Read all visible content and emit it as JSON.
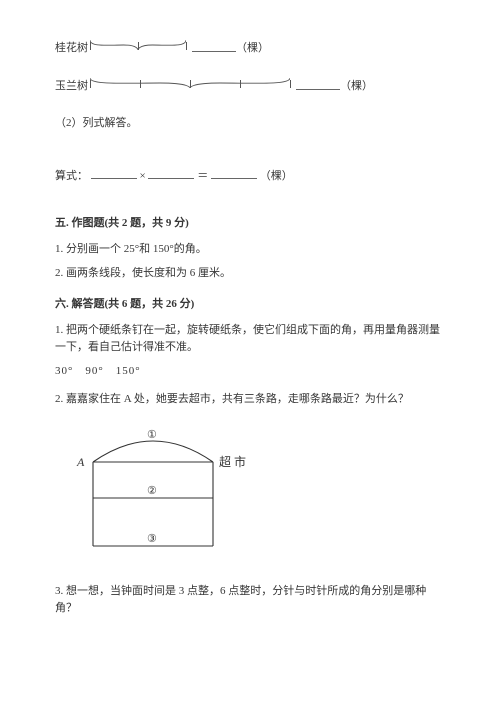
{
  "tree1": {
    "label": "桂花树",
    "unit": "（棵）",
    "blank_a_width": 48,
    "blank_b_width": 44,
    "brace_width": 96,
    "ticks": [
      0,
      48,
      96
    ]
  },
  "tree2": {
    "label": "玉兰树",
    "unit": "（棵）",
    "blank_width": 44,
    "brace_width": 200,
    "ticks": [
      0,
      50,
      100,
      150,
      200
    ]
  },
  "sub2": {
    "label": "（2）列式解答。"
  },
  "formula": {
    "prefix": "算式：",
    "op": "×",
    "eq": "＝",
    "unit": "（棵）",
    "blank_w": 46
  },
  "sec5": {
    "title": "五. 作图题(共 2 题，共 9 分)",
    "q1": "1. 分别画一个 25°和 150°的角。",
    "q2": "2. 画两条线段，使长度和为 6 厘米。"
  },
  "sec6": {
    "title": "六. 解答题(共 6 题，共 26 分)",
    "q1": "1. 把两个硬纸条钉在一起，旋转硬纸条，使它们组成下面的角，再用量角器测量一下，看自己估计得准不准。",
    "angles": "30°　90°　150°",
    "q2": "2. 嘉嘉家住在 A 处，她要去超市，共有三条路，走哪条路最近？为什么？",
    "q3": "3. 想一想，当钟面时间是 3 点整，6 点整时，分针与时针所成的角分别是哪种角？"
  },
  "diagram": {
    "A": "A",
    "market": "超 市",
    "n1": "①",
    "n2": "②",
    "n3": "③",
    "stroke": "#333333",
    "width": 180,
    "height": 140
  }
}
